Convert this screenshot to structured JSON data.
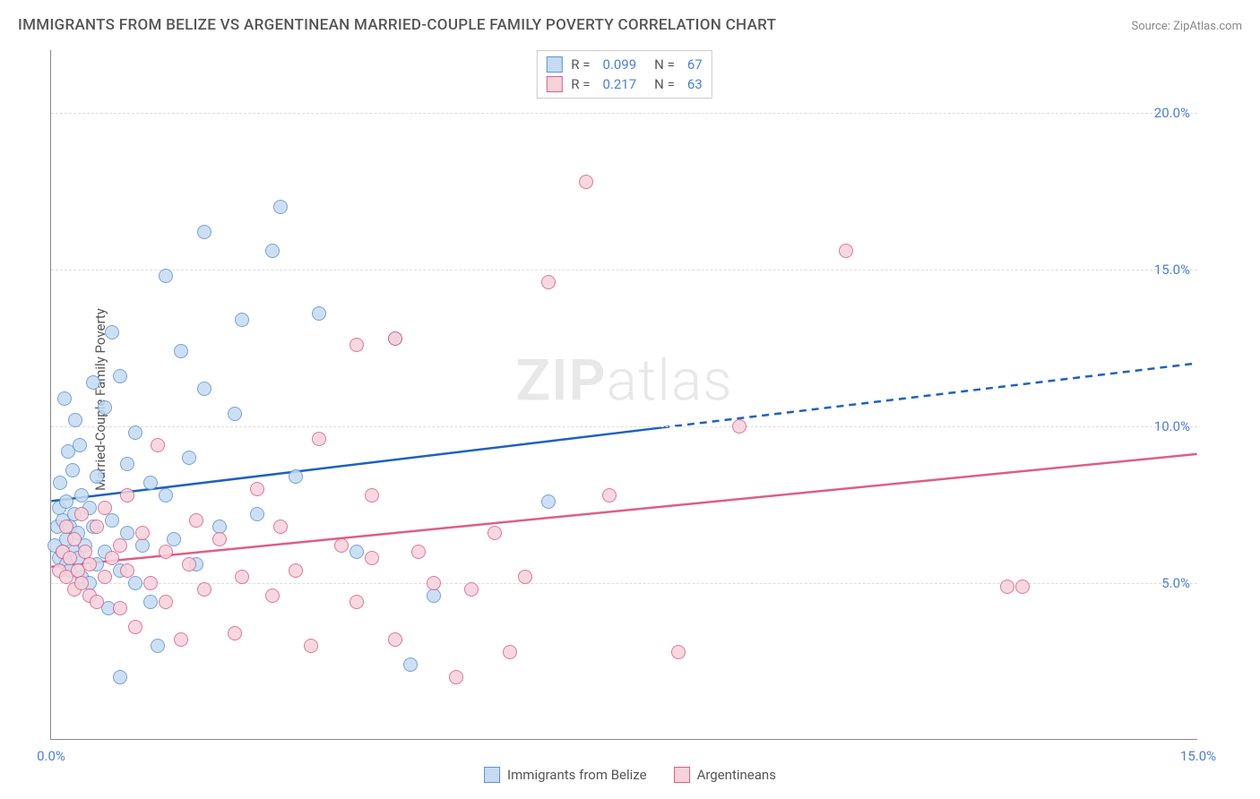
{
  "title": "IMMIGRANTS FROM BELIZE VS ARGENTINEAN MARRIED-COUPLE FAMILY POVERTY CORRELATION CHART",
  "source": "Source: ZipAtlas.com",
  "y_axis_label": "Married-Couple Family Poverty",
  "watermark_bold": "ZIP",
  "watermark_light": "atlas",
  "chart": {
    "type": "scatter",
    "background_color": "#ffffff",
    "grid_color": "#dddddd",
    "axis_color": "#888888",
    "tick_color": "#4a7fd8",
    "xlim": [
      0,
      15
    ],
    "ylim": [
      0,
      22
    ],
    "y_ticks": [
      5,
      10,
      15,
      20
    ],
    "y_tick_labels": [
      "5.0%",
      "10.0%",
      "15.0%",
      "20.0%"
    ],
    "x_ticks": [
      0,
      15
    ],
    "x_tick_labels": [
      "0.0%",
      "15.0%"
    ],
    "marker_radius": 8,
    "series": [
      {
        "name": "Immigrants from Belize",
        "fill": "#c5dbf2",
        "stroke": "#5a93d6",
        "r_value": "0.099",
        "n_value": "67",
        "trend": {
          "start_y": 7.6,
          "end_y": 12.0,
          "solid_until_x": 8.0,
          "color": "#1e62c0",
          "width": 2.5
        },
        "points": [
          [
            0.05,
            6.2
          ],
          [
            0.08,
            6.8
          ],
          [
            0.1,
            7.4
          ],
          [
            0.1,
            5.8
          ],
          [
            0.12,
            8.2
          ],
          [
            0.15,
            6.0
          ],
          [
            0.15,
            7.0
          ],
          [
            0.18,
            10.9
          ],
          [
            0.2,
            5.6
          ],
          [
            0.2,
            6.4
          ],
          [
            0.2,
            7.6
          ],
          [
            0.22,
            9.2
          ],
          [
            0.25,
            5.4
          ],
          [
            0.25,
            6.8
          ],
          [
            0.28,
            8.6
          ],
          [
            0.3,
            6.0
          ],
          [
            0.3,
            7.2
          ],
          [
            0.32,
            10.2
          ],
          [
            0.35,
            5.8
          ],
          [
            0.35,
            6.6
          ],
          [
            0.38,
            9.4
          ],
          [
            0.4,
            5.2
          ],
          [
            0.4,
            7.8
          ],
          [
            0.45,
            6.2
          ],
          [
            0.5,
            5.0
          ],
          [
            0.5,
            7.4
          ],
          [
            0.55,
            6.8
          ],
          [
            0.55,
            11.4
          ],
          [
            0.6,
            5.6
          ],
          [
            0.6,
            8.4
          ],
          [
            0.7,
            6.0
          ],
          [
            0.7,
            10.6
          ],
          [
            0.75,
            4.2
          ],
          [
            0.8,
            7.0
          ],
          [
            0.8,
            13.0
          ],
          [
            0.9,
            5.4
          ],
          [
            0.9,
            11.6
          ],
          [
            1.0,
            6.6
          ],
          [
            1.0,
            8.8
          ],
          [
            1.1,
            5.0
          ],
          [
            1.1,
            9.8
          ],
          [
            1.2,
            6.2
          ],
          [
            1.3,
            4.4
          ],
          [
            1.3,
            8.2
          ],
          [
            1.4,
            3.0
          ],
          [
            1.5,
            7.8
          ],
          [
            1.5,
            14.8
          ],
          [
            1.6,
            6.4
          ],
          [
            1.7,
            12.4
          ],
          [
            1.8,
            9.0
          ],
          [
            1.9,
            5.6
          ],
          [
            2.0,
            11.2
          ],
          [
            2.0,
            16.2
          ],
          [
            2.2,
            6.8
          ],
          [
            2.4,
            10.4
          ],
          [
            2.5,
            13.4
          ],
          [
            2.7,
            7.2
          ],
          [
            2.9,
            15.6
          ],
          [
            3.0,
            17.0
          ],
          [
            3.2,
            8.4
          ],
          [
            3.5,
            13.6
          ],
          [
            4.0,
            6.0
          ],
          [
            4.5,
            12.8
          ],
          [
            4.7,
            2.4
          ],
          [
            5.0,
            4.6
          ],
          [
            6.5,
            7.6
          ],
          [
            0.9,
            2.0
          ]
        ]
      },
      {
        "name": "Argentineans",
        "fill": "#f6d2db",
        "stroke": "#dc5f86",
        "r_value": "0.217",
        "n_value": "63",
        "trend": {
          "start_y": 5.5,
          "end_y": 9.1,
          "solid_until_x": 15.0,
          "color": "#dc5f86",
          "width": 2.5
        },
        "points": [
          [
            0.1,
            5.4
          ],
          [
            0.15,
            6.0
          ],
          [
            0.2,
            5.2
          ],
          [
            0.2,
            6.8
          ],
          [
            0.25,
            5.8
          ],
          [
            0.3,
            4.8
          ],
          [
            0.3,
            6.4
          ],
          [
            0.35,
            5.4
          ],
          [
            0.4,
            7.2
          ],
          [
            0.4,
            5.0
          ],
          [
            0.45,
            6.0
          ],
          [
            0.5,
            4.6
          ],
          [
            0.5,
            5.6
          ],
          [
            0.6,
            6.8
          ],
          [
            0.6,
            4.4
          ],
          [
            0.7,
            5.2
          ],
          [
            0.7,
            7.4
          ],
          [
            0.8,
            5.8
          ],
          [
            0.9,
            4.2
          ],
          [
            0.9,
            6.2
          ],
          [
            1.0,
            5.4
          ],
          [
            1.0,
            7.8
          ],
          [
            1.1,
            3.6
          ],
          [
            1.2,
            6.6
          ],
          [
            1.3,
            5.0
          ],
          [
            1.4,
            9.4
          ],
          [
            1.5,
            4.4
          ],
          [
            1.5,
            6.0
          ],
          [
            1.7,
            3.2
          ],
          [
            1.8,
            5.6
          ],
          [
            1.9,
            7.0
          ],
          [
            2.0,
            4.8
          ],
          [
            2.2,
            6.4
          ],
          [
            2.4,
            3.4
          ],
          [
            2.5,
            5.2
          ],
          [
            2.7,
            8.0
          ],
          [
            2.9,
            4.6
          ],
          [
            3.0,
            6.8
          ],
          [
            3.2,
            5.4
          ],
          [
            3.4,
            3.0
          ],
          [
            3.5,
            9.6
          ],
          [
            3.8,
            6.2
          ],
          [
            4.0,
            4.4
          ],
          [
            4.2,
            7.8
          ],
          [
            4.5,
            3.2
          ],
          [
            4.8,
            6.0
          ],
          [
            5.0,
            5.0
          ],
          [
            5.3,
            2.0
          ],
          [
            5.5,
            4.8
          ],
          [
            5.8,
            6.6
          ],
          [
            6.0,
            2.8
          ],
          [
            6.2,
            5.2
          ],
          [
            6.5,
            14.6
          ],
          [
            7.0,
            17.8
          ],
          [
            7.3,
            7.8
          ],
          [
            8.2,
            2.8
          ],
          [
            9.0,
            10.0
          ],
          [
            10.4,
            15.6
          ],
          [
            12.5,
            4.9
          ],
          [
            12.7,
            4.9
          ],
          [
            4.0,
            12.6
          ],
          [
            4.5,
            12.8
          ],
          [
            4.2,
            5.8
          ]
        ]
      }
    ]
  },
  "bottom_legend": [
    {
      "label": "Immigrants from Belize",
      "fill": "#c5dbf2",
      "stroke": "#5a93d6"
    },
    {
      "label": "Argentineans",
      "fill": "#f6d2db",
      "stroke": "#dc5f86"
    }
  ]
}
